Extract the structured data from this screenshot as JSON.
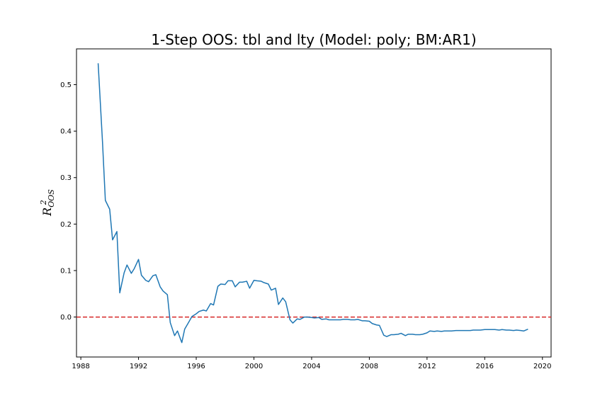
{
  "chart_data": {
    "type": "line",
    "title": "1-Step OOS: tbl and lty (Model: poly; BM:AR1)",
    "xlabel": "",
    "ylabel": {
      "base": "R",
      "sup": "2",
      "sub": "OOS"
    },
    "xlim": [
      1987.7,
      2020.6
    ],
    "ylim": [
      -0.086,
      0.577
    ],
    "xticks": [
      1988,
      1992,
      1996,
      2000,
      2004,
      2008,
      2012,
      2016,
      2020
    ],
    "yticks": [
      0.0,
      0.1,
      0.2,
      0.3,
      0.4,
      0.5
    ],
    "ytick_labels": [
      "0.0",
      "0.1",
      "0.2",
      "0.3",
      "0.4",
      "0.5"
    ],
    "grid": false,
    "line_color": "#1f77b4",
    "reference_line": {
      "y": 0.0,
      "color": "#d62728",
      "style": "dashed"
    },
    "series": [
      {
        "x": [
          1989.2,
          1989.5,
          1989.7,
          1990.0,
          1990.2,
          1990.5,
          1990.7,
          1991.0,
          1991.2,
          1991.5,
          1991.7,
          1992.0,
          1992.2,
          1992.5,
          1992.7,
          1993.0,
          1993.2,
          1993.5,
          1993.7,
          1994.0,
          1994.2,
          1994.5,
          1994.7,
          1995.0,
          1995.2,
          1995.5,
          1995.7,
          1996.0,
          1996.2,
          1996.5,
          1996.7,
          1997.0,
          1997.2,
          1997.5,
          1997.7,
          1998.0,
          1998.2,
          1998.5,
          1998.7,
          1999.0,
          1999.2,
          1999.5,
          1999.7,
          2000.0,
          2000.2,
          2000.5,
          2000.7,
          2001.0,
          2001.2,
          2001.5,
          2001.7,
          2002.0,
          2002.2,
          2002.5,
          2002.7,
          2003.0,
          2003.2,
          2003.5,
          2003.7,
          2004.0,
          2004.2,
          2004.5,
          2004.7,
          2005.0,
          2005.2,
          2005.5,
          2005.7,
          2006.0,
          2006.2,
          2006.5,
          2006.7,
          2007.0,
          2007.2,
          2007.5,
          2007.7,
          2008.0,
          2008.2,
          2008.5,
          2008.7,
          2009.0,
          2009.2,
          2009.5,
          2009.7,
          2010.0,
          2010.2,
          2010.5,
          2010.7,
          2011.0,
          2011.2,
          2011.5,
          2011.7,
          2012.0,
          2012.2,
          2012.5,
          2012.7,
          2013.0,
          2013.2,
          2013.5,
          2013.7,
          2014.0,
          2014.2,
          2014.5,
          2014.7,
          2015.0,
          2015.2,
          2015.5,
          2015.7,
          2016.0,
          2016.2,
          2016.5,
          2016.7,
          2017.0,
          2017.2,
          2017.5,
          2017.7,
          2018.0,
          2018.2,
          2018.5,
          2018.7,
          2019.0
        ],
        "y": [
          0.546,
          0.378,
          0.251,
          0.232,
          0.166,
          0.184,
          0.052,
          0.095,
          0.112,
          0.094,
          0.104,
          0.124,
          0.09,
          0.079,
          0.076,
          0.089,
          0.091,
          0.065,
          0.056,
          0.048,
          -0.012,
          -0.04,
          -0.03,
          -0.055,
          -0.026,
          -0.01,
          0.001,
          0.007,
          0.012,
          0.015,
          0.013,
          0.029,
          0.026,
          0.066,
          0.071,
          0.07,
          0.078,
          0.078,
          0.065,
          0.075,
          0.075,
          0.077,
          0.062,
          0.079,
          0.078,
          0.077,
          0.074,
          0.071,
          0.058,
          0.062,
          0.027,
          0.041,
          0.033,
          -0.006,
          -0.013,
          -0.004,
          -0.005,
          0.0,
          0.0,
          -0.001,
          -0.002,
          -0.001,
          -0.005,
          -0.004,
          -0.006,
          -0.006,
          -0.006,
          -0.006,
          -0.005,
          -0.005,
          -0.006,
          -0.006,
          -0.005,
          -0.008,
          -0.008,
          -0.009,
          -0.014,
          -0.017,
          -0.018,
          -0.039,
          -0.042,
          -0.038,
          -0.038,
          -0.037,
          -0.035,
          -0.04,
          -0.037,
          -0.037,
          -0.038,
          -0.038,
          -0.037,
          -0.034,
          -0.03,
          -0.031,
          -0.03,
          -0.031,
          -0.03,
          -0.03,
          -0.03,
          -0.029,
          -0.029,
          -0.029,
          -0.029,
          -0.029,
          -0.028,
          -0.028,
          -0.028,
          -0.027,
          -0.027,
          -0.027,
          -0.027,
          -0.028,
          -0.027,
          -0.028,
          -0.028,
          -0.029,
          -0.028,
          -0.029,
          -0.03,
          -0.026
        ]
      }
    ]
  }
}
